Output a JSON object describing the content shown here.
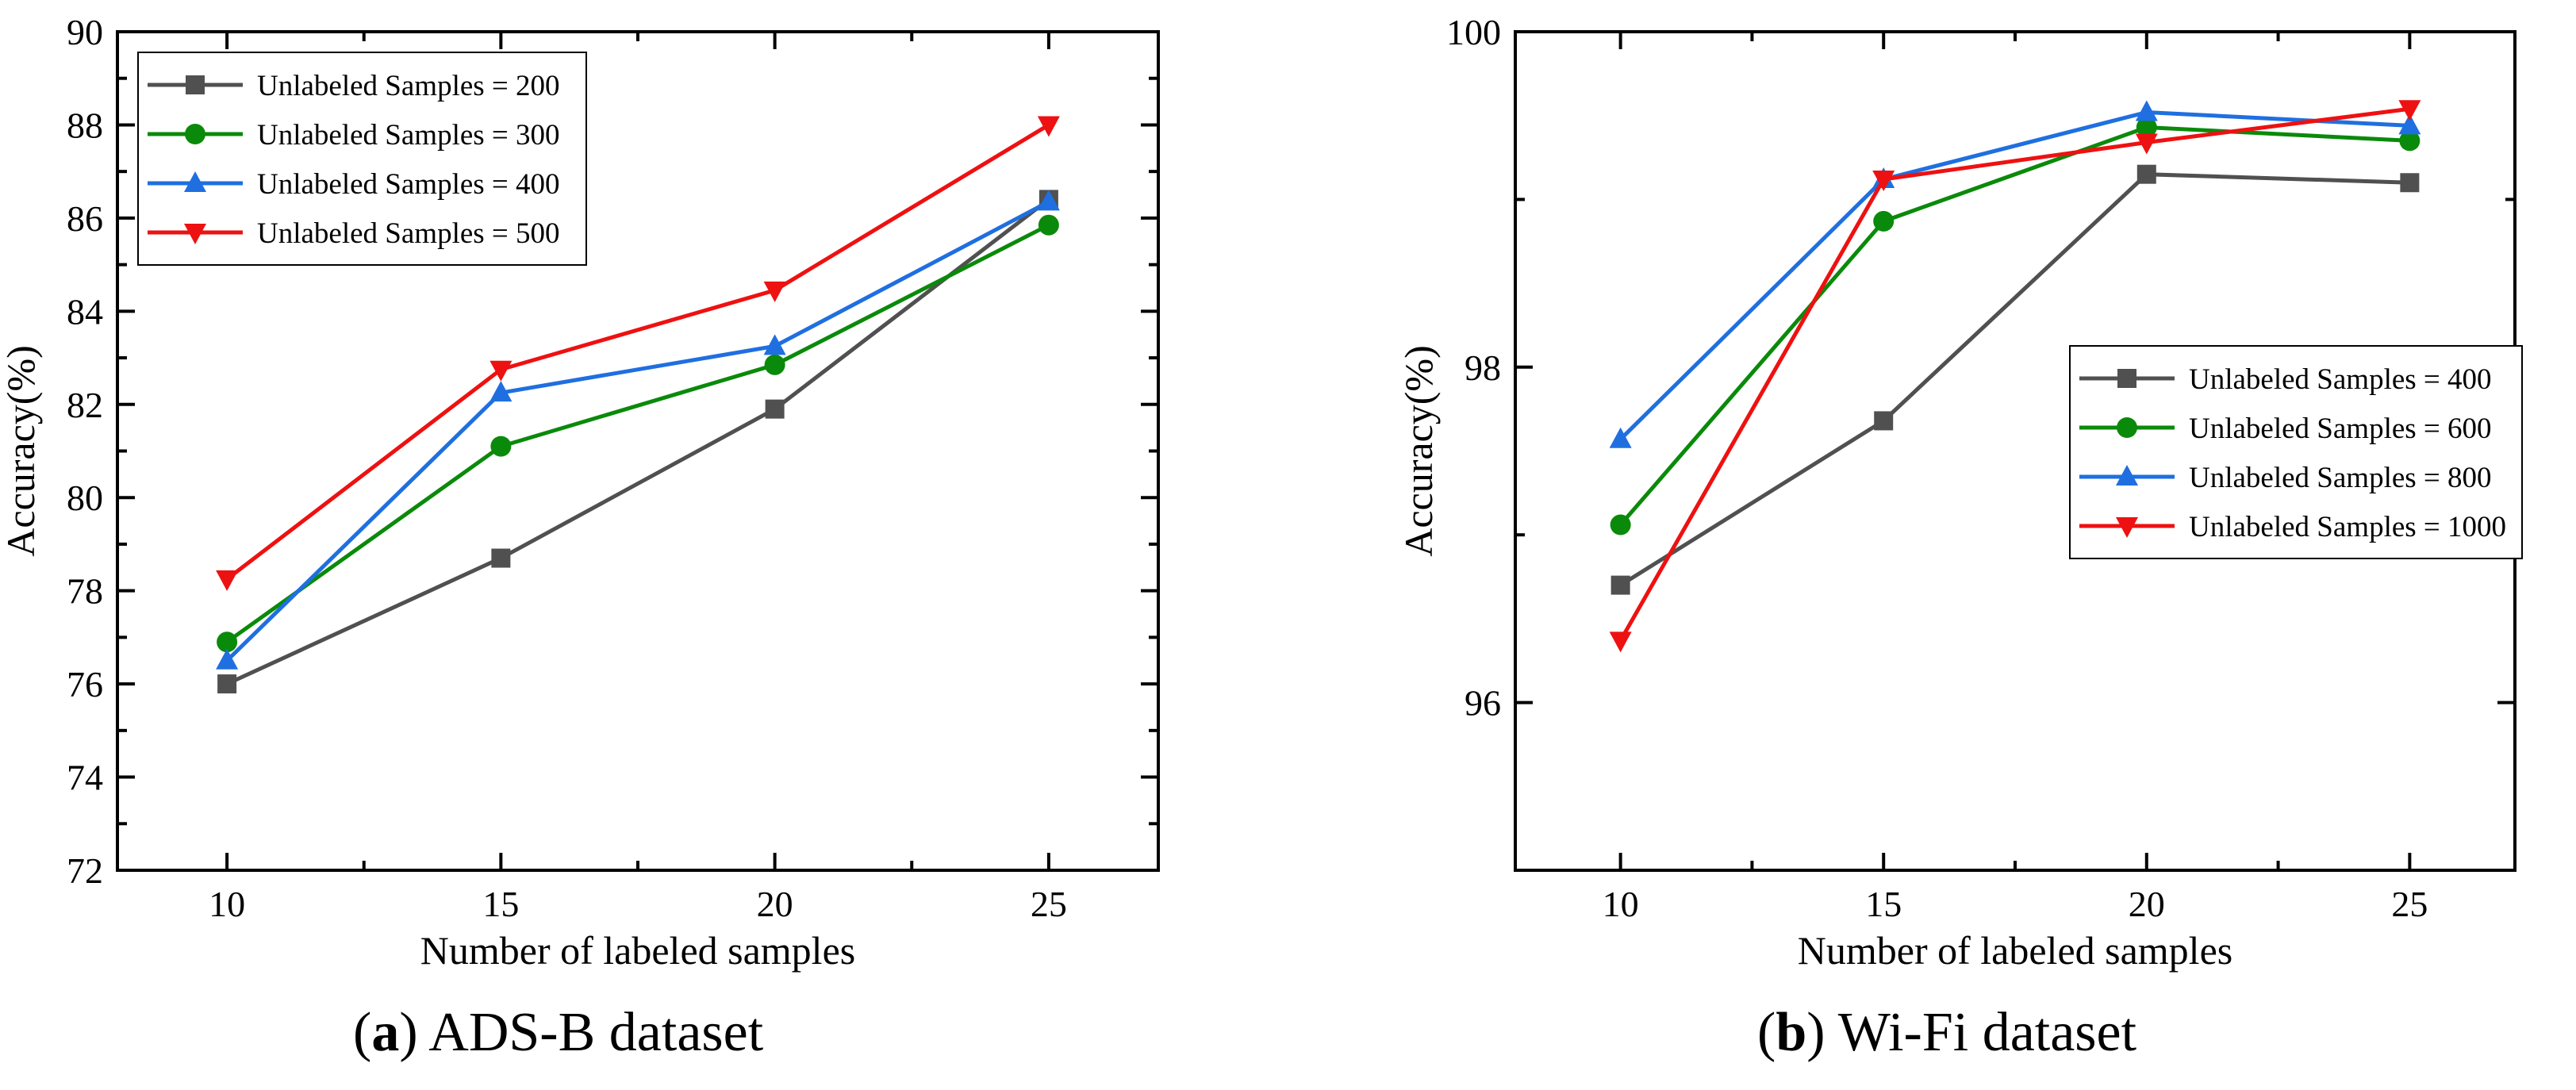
{
  "chart_data": [
    {
      "type": "line",
      "panel": "(a)",
      "caption_letter": "a",
      "caption_text": "ADS-B dataset",
      "xlabel": "Number of labeled samples",
      "ylabel": "Accuracy(%)",
      "x": [
        10,
        15,
        20,
        25
      ],
      "xlim": [
        8,
        27
      ],
      "ylim": [
        72,
        90
      ],
      "yticks": [
        72,
        74,
        76,
        78,
        80,
        82,
        84,
        86,
        88,
        90
      ],
      "xticks": [
        10,
        15,
        20,
        25
      ],
      "legend_position": "top-left",
      "series": [
        {
          "name": "Unlabeled Samples = 200",
          "values": [
            76.0,
            78.7,
            81.9,
            86.4
          ],
          "color": "#505050",
          "marker": "square"
        },
        {
          "name": "Unlabeled Samples = 300",
          "values": [
            76.9,
            81.1,
            82.85,
            85.85
          ],
          "color": "#0a8a0a",
          "marker": "circle"
        },
        {
          "name": "Unlabeled Samples = 400",
          "values": [
            76.5,
            82.25,
            83.25,
            86.35
          ],
          "color": "#1f6fe0",
          "marker": "triangle-up"
        },
        {
          "name": "Unlabeled Samples = 500",
          "values": [
            78.25,
            82.75,
            84.45,
            88.0
          ],
          "color": "#ee1111",
          "marker": "triangle-down"
        }
      ]
    },
    {
      "type": "line",
      "panel": "(b)",
      "caption_letter": "b",
      "caption_text": "Wi-Fi dataset",
      "xlabel": "Number of labeled samples",
      "ylabel": "Accuracy(%)",
      "x": [
        10,
        15,
        20,
        25
      ],
      "xlim": [
        8,
        27
      ],
      "ylim": [
        95,
        100
      ],
      "yticks": [
        96,
        98,
        100
      ],
      "xticks": [
        10,
        15,
        20,
        25
      ],
      "legend_position": "center-right",
      "series": [
        {
          "name": "Unlabeled Samples = 400",
          "values": [
            96.7,
            97.68,
            99.15,
            99.1
          ],
          "color": "#505050",
          "marker": "square"
        },
        {
          "name": "Unlabeled Samples = 600",
          "values": [
            97.06,
            98.87,
            99.43,
            99.35
          ],
          "color": "#0a8a0a",
          "marker": "circle"
        },
        {
          "name": "Unlabeled Samples = 800",
          "values": [
            97.57,
            99.12,
            99.52,
            99.44
          ],
          "color": "#1f6fe0",
          "marker": "triangle-up"
        },
        {
          "name": "Unlabeled Samples = 1000",
          "values": [
            96.37,
            99.12,
            99.34,
            99.54
          ],
          "color": "#ee1111",
          "marker": "triangle-down"
        }
      ]
    }
  ]
}
